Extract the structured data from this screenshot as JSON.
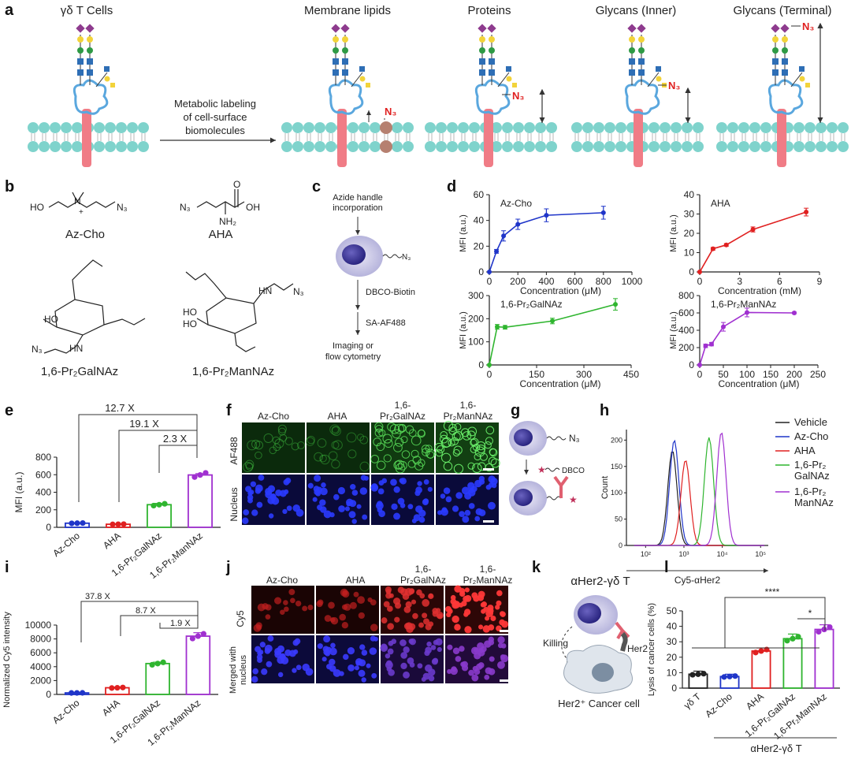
{
  "panel_a": {
    "label": "a",
    "titles": [
      "γδ T Cells",
      "Membrane lipids",
      "Proteins",
      "Glycans (Inner)",
      "Glycans (Terminal)"
    ],
    "arrow_text": [
      "Metabolic labeling",
      "of cell-surface",
      "biomolecules"
    ],
    "azide": "N₃"
  },
  "panel_b": {
    "label": "b",
    "compounds": [
      "Az-Cho",
      "AHA",
      "1,6-Pr₂GalNAz",
      "1,6-Pr₂ManNAz"
    ],
    "atoms": {
      "ho": "HO",
      "oh": "OH",
      "n3": "N₃",
      "nh2": "NH₂",
      "nh": "HN",
      "plus": "+",
      "o": "O"
    }
  },
  "panel_c": {
    "label": "c",
    "steps": [
      "Azide handle",
      "incorporation",
      "DBCO-Biotin",
      "SA-AF488",
      "Imaging or",
      "flow cytometry"
    ],
    "azide": "N₃"
  },
  "panel_d": {
    "label": "d"
  },
  "panel_e": {
    "label": "e",
    "folds": [
      "12.7 X",
      "19.1 X",
      "2.3 X"
    ]
  },
  "panel_f": {
    "label": "f",
    "columns": [
      "Az-Cho",
      "AHA",
      "1,6-",
      "Pr₂GalNAz",
      "1,6-",
      "Pr₂ManNAz"
    ],
    "rows": [
      "AF488",
      "Nucleus"
    ]
  },
  "panel_g": {
    "label": "g",
    "azide": "N₃",
    "dbco": "DBCO"
  },
  "panel_h": {
    "label": "h",
    "legend": [
      "Vehicle",
      "Az-Cho",
      "AHA",
      "1,6-Pr₂",
      "GalNAz",
      "1,6-Pr₂",
      "ManNAz"
    ]
  },
  "panel_i": {
    "label": "i",
    "folds": [
      "37.8 X",
      "8.7 X",
      "1.9 X"
    ]
  },
  "panel_j": {
    "label": "j",
    "columns": [
      "Az-Cho",
      "AHA",
      "1,6-",
      "Pr₂GalNAz",
      "1,6-",
      "Pr₂ManNAz"
    ],
    "rows": [
      "Cy5",
      "Merged with",
      "nucleus"
    ]
  },
  "panel_k": {
    "label": "k",
    "title": "αHer2-γδ T",
    "killing": "Killing",
    "her2": "Her2",
    "cell": "Her2⁺ Cancer cell"
  },
  "panel_l": {
    "label": "l",
    "sig": [
      "****",
      "*"
    ],
    "group": "αHer2-γδ T"
  },
  "chart_data": [
    {
      "id": "d1",
      "type": "line",
      "title": "Az-Cho",
      "xlabel": "Concentration (μM)",
      "ylabel": "MFI (a.u.)",
      "x": [
        0,
        50,
        100,
        200,
        400,
        800
      ],
      "y": [
        0,
        16,
        28,
        37,
        44,
        46
      ],
      "err": [
        0,
        1.5,
        4,
        4,
        5,
        5
      ],
      "xlim": [
        0,
        1000
      ],
      "ylim": [
        0,
        60
      ],
      "xticks": [
        0,
        200,
        400,
        600,
        800,
        1000
      ],
      "yticks": [
        0,
        20,
        40,
        60
      ],
      "color": "#1f35c9"
    },
    {
      "id": "d2",
      "type": "line",
      "title": "AHA",
      "xlabel": "Concentration (mM)",
      "ylabel": "MFI (a.u.)",
      "x": [
        0,
        1,
        2,
        4,
        8
      ],
      "y": [
        0,
        12,
        14,
        22,
        31
      ],
      "err": [
        0,
        0.7,
        0.7,
        1.3,
        2
      ],
      "xlim": [
        0,
        9
      ],
      "ylim": [
        0,
        40
      ],
      "xticks": [
        0,
        3,
        6,
        9
      ],
      "yticks": [
        0,
        10,
        20,
        30,
        40
      ],
      "color": "#e02020"
    },
    {
      "id": "d3",
      "type": "line",
      "title": "1,6-Pr₂GalNAz",
      "xlabel": "Concentration (μM)",
      "ylabel": "MFI (a.u.)",
      "x": [
        0,
        25,
        50,
        200,
        400
      ],
      "y": [
        0,
        165,
        163,
        190,
        262
      ],
      "err": [
        0,
        10,
        8,
        12,
        25
      ],
      "xlim": [
        0,
        450
      ],
      "ylim": [
        0,
        300
      ],
      "xticks": [
        0,
        150,
        300,
        450
      ],
      "yticks": [
        0,
        100,
        200,
        300
      ],
      "color": "#2fb52f"
    },
    {
      "id": "d4",
      "type": "line",
      "title": "1,6-Pr₂ManNAz",
      "xlabel": "Concentration (μM)",
      "ylabel": "MFI (a.u.)",
      "x": [
        0,
        12.5,
        25,
        50,
        100,
        200
      ],
      "y": [
        0,
        220,
        240,
        440,
        605,
        600
      ],
      "err": [
        0,
        20,
        20,
        50,
        50,
        10
      ],
      "xlim": [
        0,
        250
      ],
      "ylim": [
        0,
        800
      ],
      "xticks": [
        0,
        50,
        100,
        150,
        200,
        250
      ],
      "yticks": [
        0,
        200,
        400,
        600,
        800
      ],
      "color": "#a030d0"
    },
    {
      "id": "e",
      "type": "bar",
      "ylabel": "MFI (a.u.)",
      "categories": [
        "Az-Cho",
        "AHA",
        "1,6-Pr₂GalNAz",
        "1,6-Pr₂ManNAz"
      ],
      "values": [
        47,
        35,
        258,
        597
      ],
      "err": [
        3,
        5,
        15,
        15
      ],
      "colors": [
        "#1f35c9",
        "#e02020",
        "#2fb52f",
        "#a030d0"
      ],
      "ylim": [
        0,
        800
      ],
      "yticks": [
        0,
        200,
        400,
        600,
        800
      ]
    },
    {
      "id": "h",
      "type": "line",
      "xlabel": "Cy5-αHer2",
      "ylabel": "Count",
      "x_scale": "log",
      "xticks": [
        "10²",
        "10³",
        "10⁴",
        "10⁵"
      ],
      "yticks": [
        0,
        50,
        100,
        150,
        200
      ],
      "series": [
        {
          "name": "Vehicle",
          "color": "#222222",
          "peak": 500,
          "height": 180
        },
        {
          "name": "Az-Cho",
          "color": "#1f35c9",
          "peak": 560,
          "height": 200
        },
        {
          "name": "AHA",
          "color": "#e02020",
          "peak": 1100,
          "height": 162
        },
        {
          "name": "1,6-Pr₂GalNAz",
          "color": "#2fb52f",
          "peak": 4500,
          "height": 205
        },
        {
          "name": "1,6-Pr₂ManNAz",
          "color": "#a030d0",
          "peak": 9500,
          "height": 215
        }
      ]
    },
    {
      "id": "i",
      "type": "bar",
      "ylabel": "Normalized Cy5 intensity",
      "categories": [
        "Az-Cho",
        "AHA",
        "1,6-Pr₂GalNAz",
        "1,6-Pr₂ManNAz"
      ],
      "values": [
        220,
        960,
        4450,
        8400
      ],
      "err": [
        80,
        100,
        200,
        500
      ],
      "colors": [
        "#1f35c9",
        "#e02020",
        "#2fb52f",
        "#a030d0"
      ],
      "ylim": [
        0,
        10000
      ],
      "yticks": [
        0,
        2000,
        4000,
        6000,
        8000,
        10000
      ]
    },
    {
      "id": "l",
      "type": "bar",
      "ylabel": "Lysis of cancer cells (%)",
      "categories": [
        "γδ T",
        "Az-Cho",
        "AHA",
        "1,6-Pr₂GalNAz",
        "1,6-Pr₂ManNAz"
      ],
      "values": [
        9,
        7.5,
        24,
        32,
        38
      ],
      "err": [
        2,
        1.5,
        2,
        3,
        3
      ],
      "colors": [
        "#222222",
        "#1f35c9",
        "#e02020",
        "#2fb52f",
        "#a030d0"
      ],
      "ylim": [
        0,
        50
      ],
      "yticks": [
        0,
        10,
        20,
        30,
        40,
        50
      ]
    }
  ]
}
